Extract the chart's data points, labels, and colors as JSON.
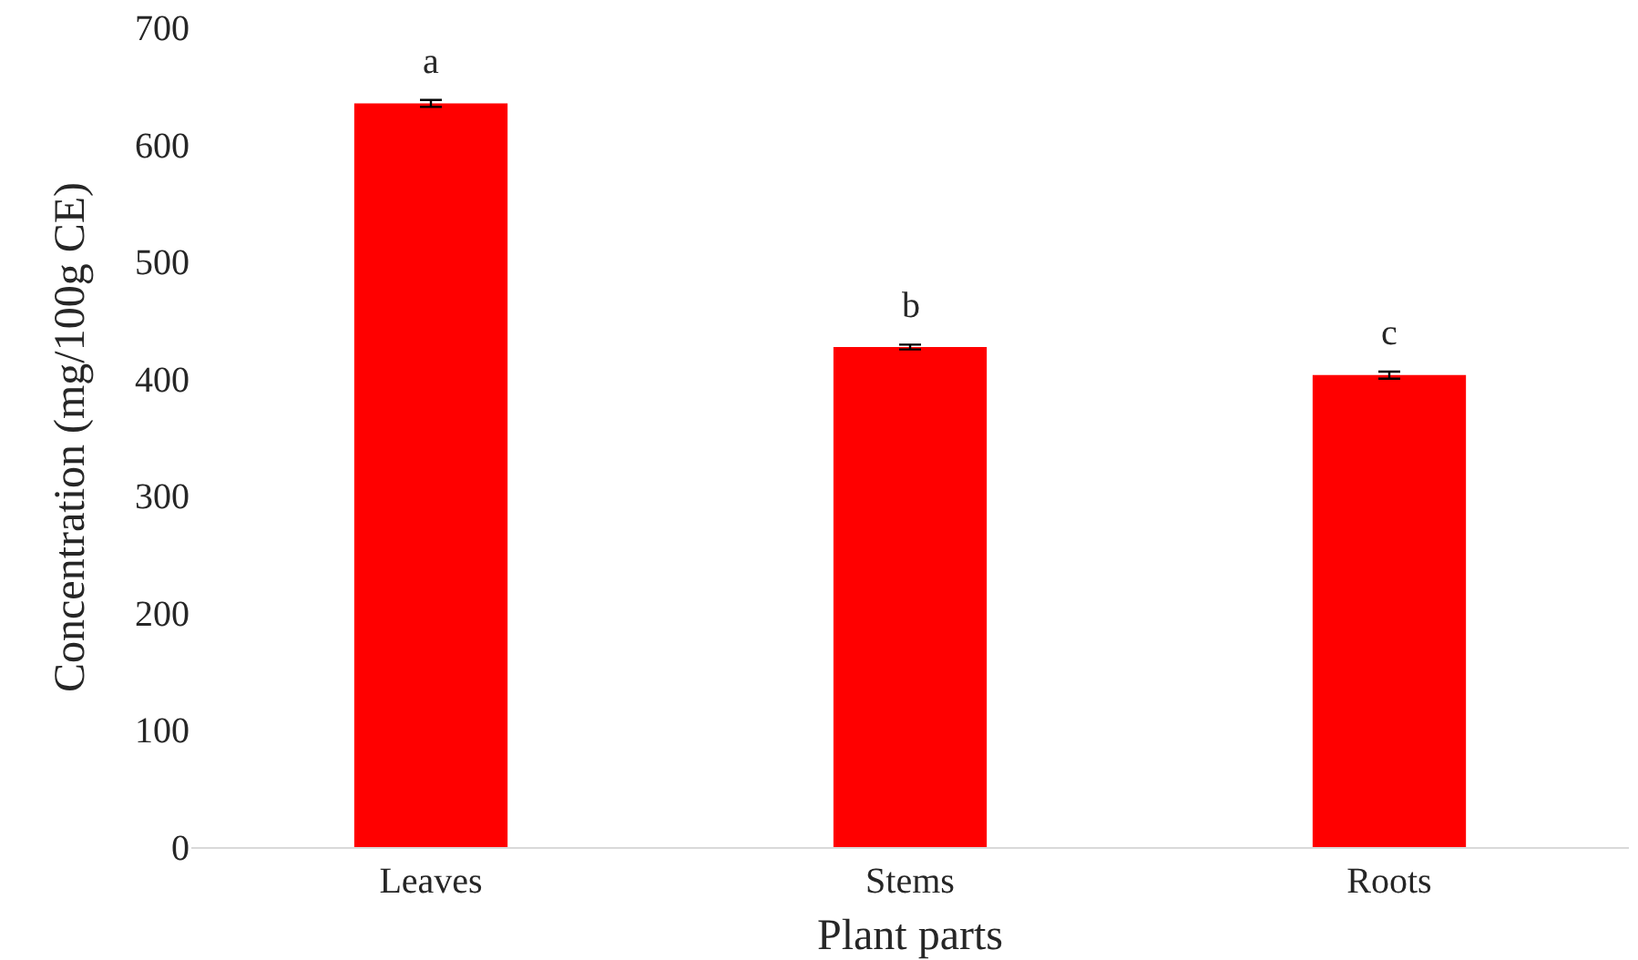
{
  "chart_data": {
    "type": "bar",
    "xlabel": "Plant parts",
    "ylabel": "Concentration (mg/100g CE)",
    "categories": [
      "Leaves",
      "Stems",
      "Roots"
    ],
    "values": [
      635,
      427,
      403
    ],
    "errors": [
      3,
      2,
      3
    ],
    "color": "#ff0000",
    "ylim": [
      0,
      700
    ],
    "yticks": [
      0,
      100,
      200,
      300,
      400,
      500,
      600,
      700
    ],
    "annotations": [
      "a",
      "b",
      "c"
    ]
  }
}
